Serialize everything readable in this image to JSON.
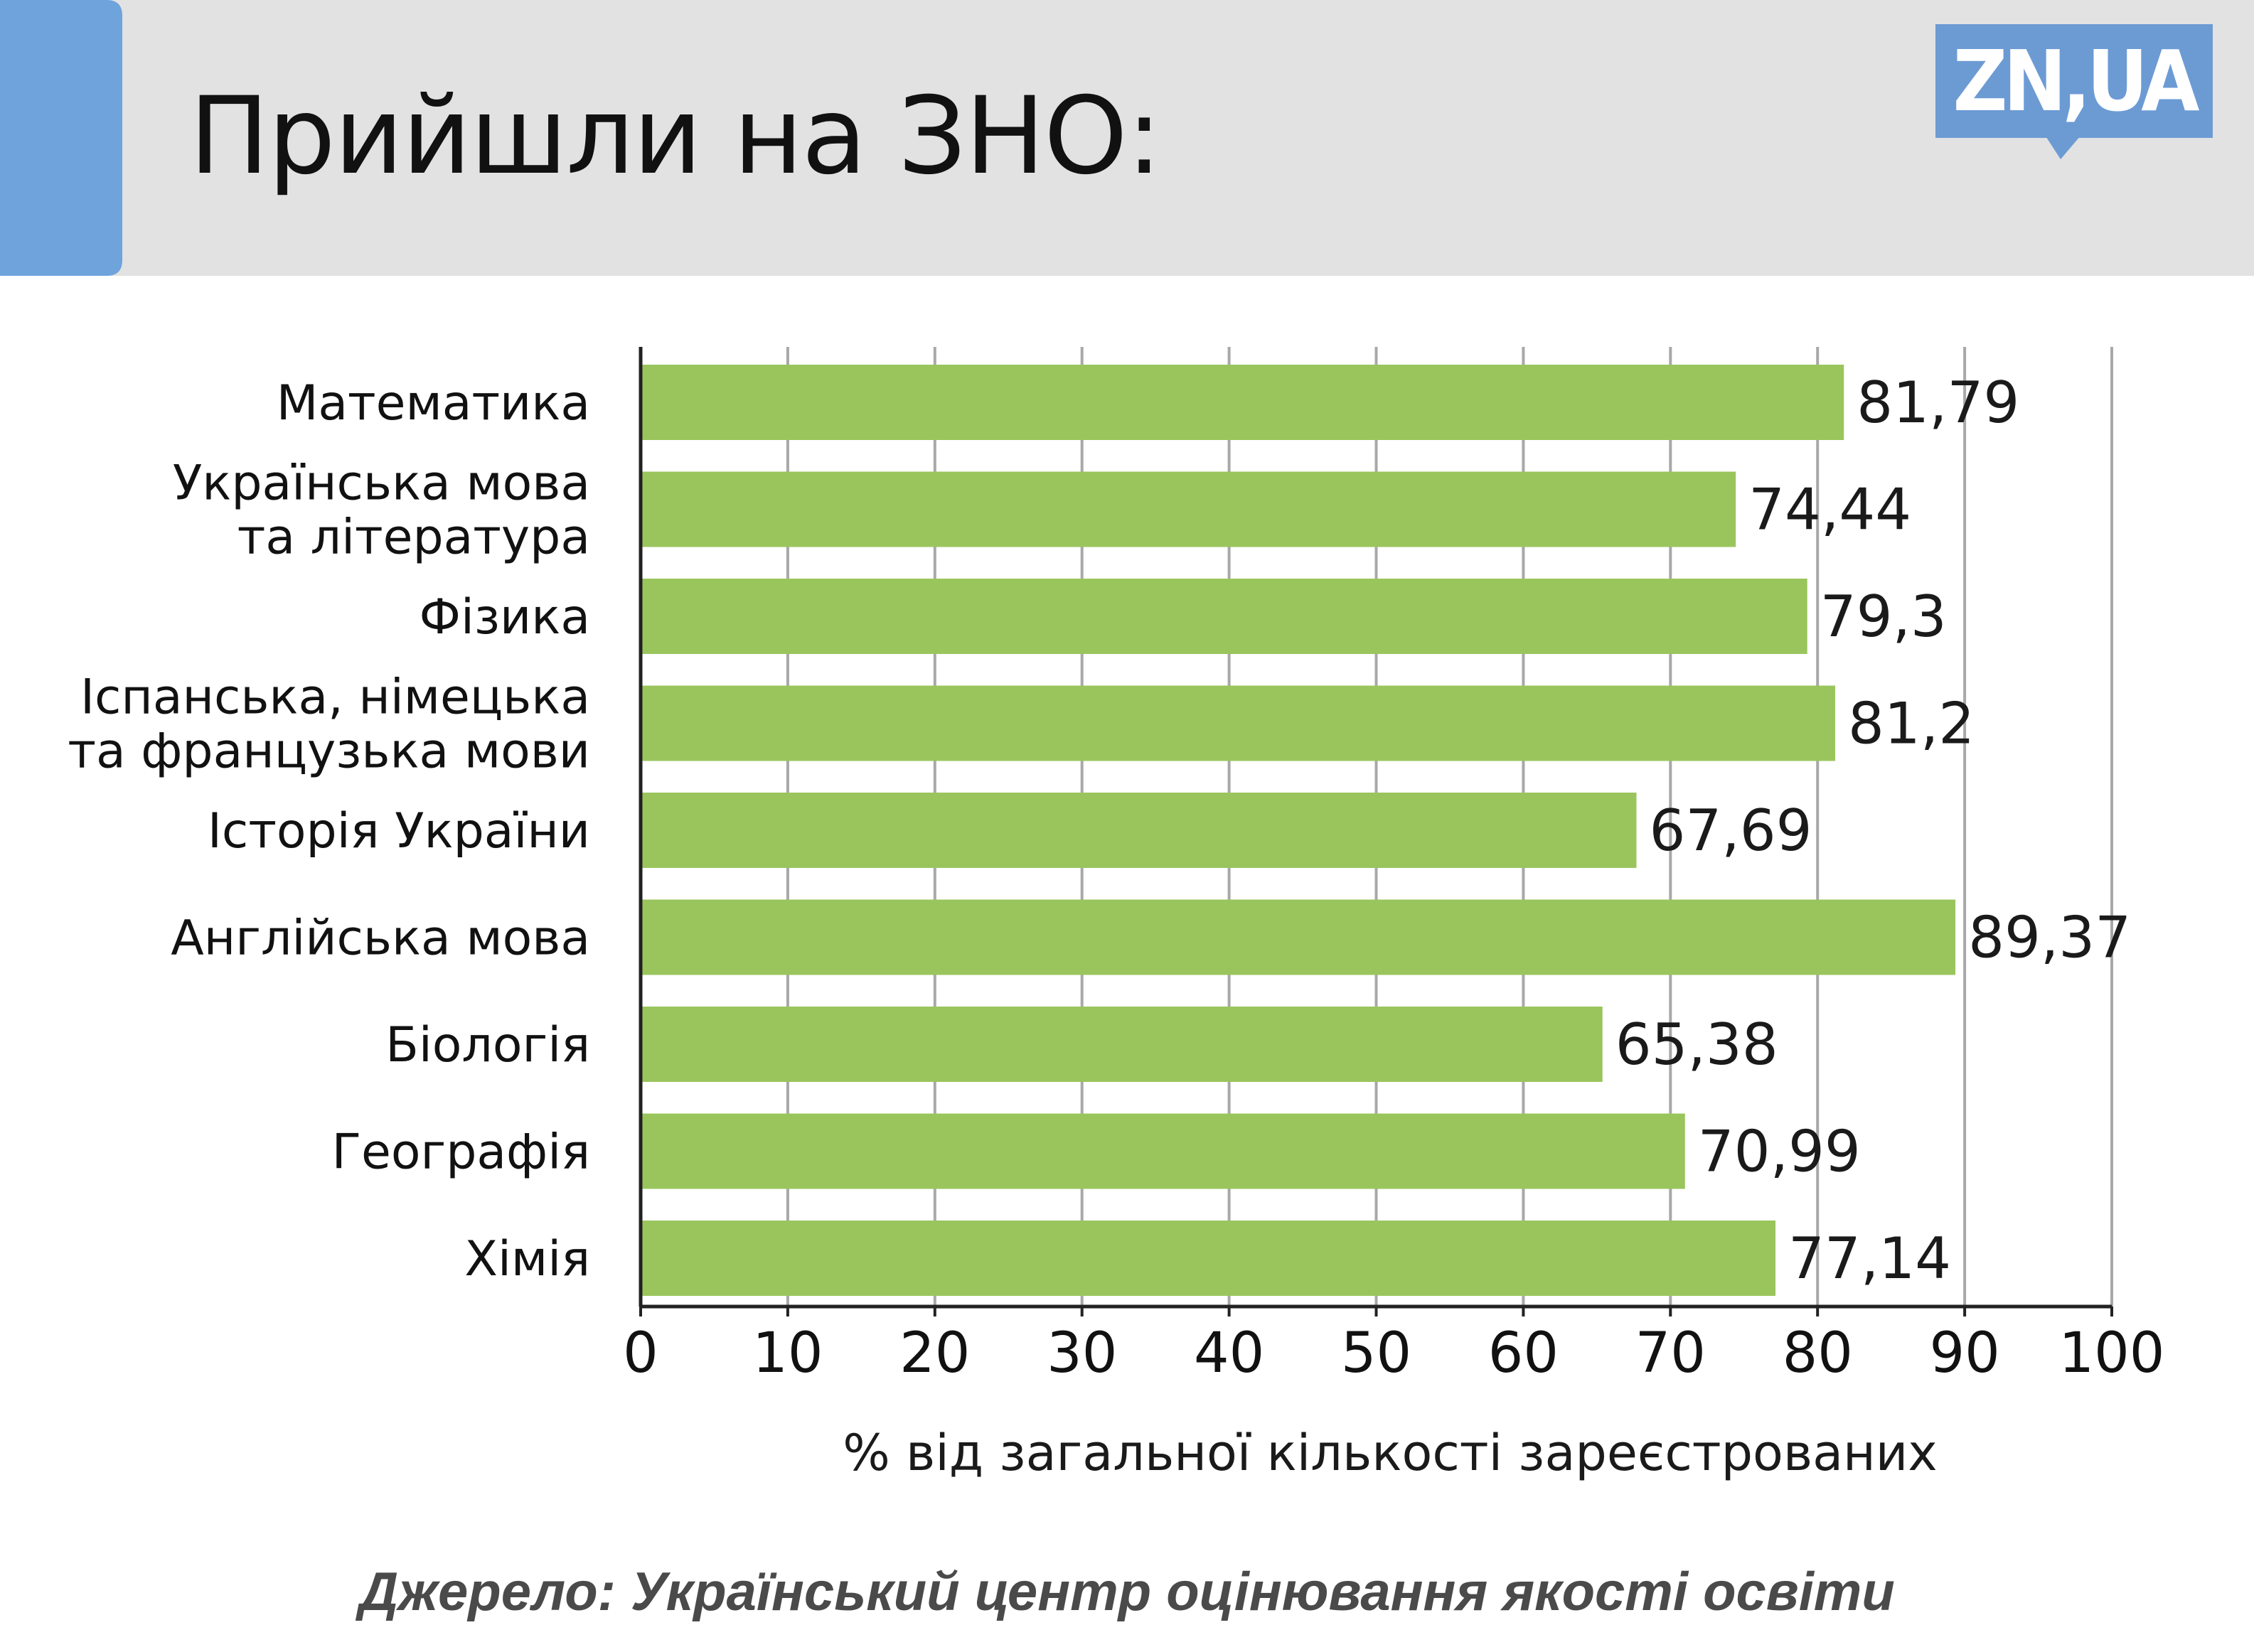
{
  "header": {
    "title": "Прийшли на ЗНО:",
    "logo_text": "ZN,UA"
  },
  "colors": {
    "header_bg": "#e2e2e2",
    "accent_tab": "#6fa3dc",
    "logo_bg": "#6c9bd4",
    "bar": "#9ac55d",
    "grid": "#a8a8a8"
  },
  "chart_data": {
    "type": "bar",
    "orientation": "horizontal",
    "categories": [
      [
        "Математика"
      ],
      [
        "Українська мова",
        "та література"
      ],
      [
        "Фізика"
      ],
      [
        "Іспанська, німецька",
        "та французька мови"
      ],
      [
        "Історія України"
      ],
      [
        "Англійська мова"
      ],
      [
        "Біологія"
      ],
      [
        "Географія"
      ],
      [
        "Хімія"
      ]
    ],
    "values": [
      81.79,
      74.44,
      79.3,
      81.2,
      67.69,
      89.37,
      65.38,
      70.99,
      77.14
    ],
    "value_labels": [
      "81,79",
      "74,44",
      "79,3",
      "81,2",
      "67,69",
      "89,37",
      "65,38",
      "70,99",
      "77,14"
    ],
    "xlim": [
      0,
      100
    ],
    "xticks": [
      0,
      10,
      20,
      30,
      40,
      50,
      60,
      70,
      80,
      90,
      100
    ],
    "xlabel": "% від загальної кількості зареєстрованих",
    "ylabel": "",
    "grid": "vertical"
  },
  "source": "Джерело: Український центр оцінювання якості освіти"
}
